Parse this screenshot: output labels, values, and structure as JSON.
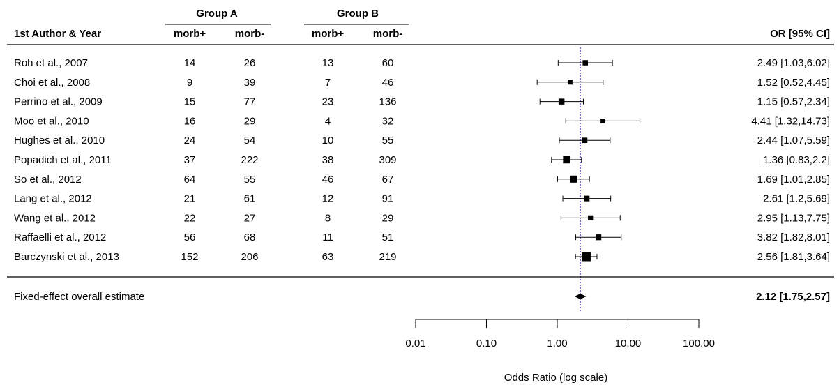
{
  "chart_data": {
    "type": "forest",
    "group_headers": [
      "Group A",
      "Group B"
    ],
    "column_headers": {
      "study": "1st Author & Year",
      "a_pos": "morb+",
      "a_neg": "morb-",
      "b_pos": "morb+",
      "b_neg": "morb-",
      "estimate": "OR [95% CI]"
    },
    "studies": [
      {
        "label": "Roh et al., 2007",
        "a_pos": "14",
        "a_neg": "26",
        "b_pos": "13",
        "b_neg": "60",
        "or": 2.49,
        "lo": 1.03,
        "hi": 6.02,
        "text": "2.49 [1.03,6.02]"
      },
      {
        "label": "Choi et al., 2008",
        "a_pos": "9",
        "a_neg": "39",
        "b_pos": "7",
        "b_neg": "46",
        "or": 1.52,
        "lo": 0.52,
        "hi": 4.45,
        "text": "1.52 [0.52,4.45]"
      },
      {
        "label": "Perrino et al., 2009",
        "a_pos": "15",
        "a_neg": "77",
        "b_pos": "23",
        "b_neg": "136",
        "or": 1.15,
        "lo": 0.57,
        "hi": 2.34,
        "text": "1.15 [0.57,2.34]"
      },
      {
        "label": "Moo et al., 2010",
        "a_pos": "16",
        "a_neg": "29",
        "b_pos": "4",
        "b_neg": "32",
        "or": 4.41,
        "lo": 1.32,
        "hi": 14.73,
        "text": "4.41 [1.32,14.73]"
      },
      {
        "label": "Hughes et al., 2010",
        "a_pos": "24",
        "a_neg": "54",
        "b_pos": "10",
        "b_neg": "55",
        "or": 2.44,
        "lo": 1.07,
        "hi": 5.59,
        "text": "2.44 [1.07,5.59]"
      },
      {
        "label": "Popadich et al., 2011",
        "a_pos": "37",
        "a_neg": "222",
        "b_pos": "38",
        "b_neg": "309",
        "or": 1.36,
        "lo": 0.83,
        "hi": 2.2,
        "text": "1.36 [0.83,2.2]"
      },
      {
        "label": "So et al., 2012",
        "a_pos": "64",
        "a_neg": "55",
        "b_pos": "46",
        "b_neg": "67",
        "or": 1.69,
        "lo": 1.01,
        "hi": 2.85,
        "text": "1.69 [1.01,2.85]"
      },
      {
        "label": "Lang et al., 2012",
        "a_pos": "21",
        "a_neg": "61",
        "b_pos": "12",
        "b_neg": "91",
        "or": 2.61,
        "lo": 1.2,
        "hi": 5.69,
        "text": "2.61 [1.2,5.69]"
      },
      {
        "label": "Wang et al., 2012",
        "a_pos": "22",
        "a_neg": "27",
        "b_pos": "8",
        "b_neg": "29",
        "or": 2.95,
        "lo": 1.13,
        "hi": 7.75,
        "text": "2.95 [1.13,7.75]"
      },
      {
        "label": "Raffaelli et al., 2012",
        "a_pos": "56",
        "a_neg": "68",
        "b_pos": "11",
        "b_neg": "51",
        "or": 3.82,
        "lo": 1.82,
        "hi": 8.01,
        "text": "3.82 [1.82,8.01]"
      },
      {
        "label": "Barczynski et al., 2013",
        "a_pos": "152",
        "a_neg": "206",
        "b_pos": "63",
        "b_neg": "219",
        "or": 2.56,
        "lo": 1.81,
        "hi": 3.64,
        "text": "2.56 [1.81,3.64]"
      }
    ],
    "overall": {
      "label": "Fixed-effect overall estimate",
      "or": 2.12,
      "lo": 1.75,
      "hi": 2.57,
      "text": "2.12 [1.75,2.57]"
    },
    "x_axis": {
      "label": "Odds Ratio (log scale)",
      "scale": "log",
      "ticks": [
        0.01,
        0.1,
        1,
        10,
        100
      ],
      "tick_labels": [
        "0.01",
        "0.10",
        "1.00",
        "10.00",
        "100.00"
      ]
    },
    "reference_line": {
      "value": 2.12,
      "style": "dotted",
      "color": "#1a1aa8"
    },
    "colors": {
      "marks": "#000000",
      "reference": "#1a1aa8"
    }
  }
}
